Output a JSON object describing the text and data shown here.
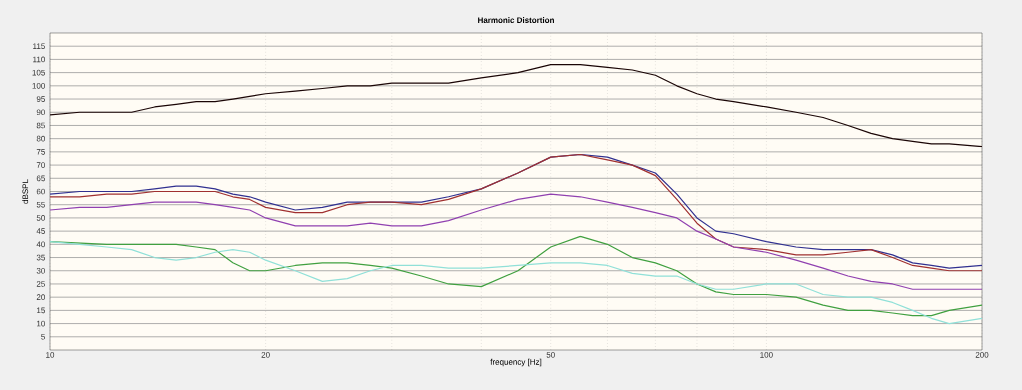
{
  "chart_data": {
    "type": "line",
    "title": "Harmonic Distortion",
    "xlabel": "frequency [Hz]",
    "ylabel": "dBSPL",
    "log": "x",
    "grid": true,
    "line_style": "solid",
    "xlim": [
      10,
      200
    ],
    "ylim": [
      0,
      120
    ],
    "xticks": [
      10,
      20,
      {
        "value": 30,
        "label": null
      },
      {
        "value": 40,
        "label": null
      },
      50,
      {
        "value": 60,
        "label": null
      },
      {
        "value": 70,
        "label": null
      },
      {
        "value": 80,
        "label": null
      },
      {
        "value": 90,
        "label": null
      },
      100,
      200
    ],
    "yticks": [
      5,
      10,
      15,
      20,
      25,
      30,
      35,
      40,
      45,
      50,
      55,
      60,
      65,
      70,
      75,
      80,
      85,
      90,
      95,
      100,
      105,
      110,
      115
    ],
    "x": [
      10,
      11,
      12,
      13,
      14,
      15,
      16,
      17,
      18,
      19,
      20,
      22,
      24,
      26,
      28,
      30,
      33,
      36,
      40,
      45,
      50,
      55,
      60,
      65,
      70,
      75,
      80,
      85,
      90,
      100,
      110,
      120,
      130,
      140,
      150,
      160,
      170,
      180,
      200
    ],
    "series": [
      {
        "color": "#1a0505",
        "values": [
          89,
          90,
          90,
          90,
          92,
          93,
          94,
          94,
          95,
          96,
          97,
          98,
          99,
          100,
          100,
          101,
          101,
          101,
          103,
          105,
          108,
          108,
          107,
          106,
          104,
          100,
          97,
          95,
          94,
          92,
          90,
          88,
          85,
          82,
          80,
          79,
          78,
          78,
          77
        ]
      },
      {
        "color": "#303090",
        "values": [
          59,
          60,
          60,
          60,
          61,
          62,
          62,
          61,
          59,
          58,
          56,
          53,
          54,
          56,
          56,
          56,
          56,
          58,
          61,
          67,
          73,
          74,
          73,
          70,
          67,
          59,
          50,
          45,
          44,
          41,
          39,
          38,
          38,
          38,
          36,
          33,
          32,
          31,
          32
        ]
      },
      {
        "color": "#a03030",
        "values": [
          58,
          58,
          59,
          59,
          60,
          60,
          60,
          60,
          58,
          57,
          54,
          52,
          52,
          55,
          56,
          56,
          55,
          57,
          61,
          67,
          73,
          74,
          72,
          70,
          66,
          57,
          48,
          42,
          39,
          38,
          36,
          36,
          37,
          38,
          35,
          32,
          31,
          30,
          30
        ]
      },
      {
        "color": "#9040b0",
        "values": [
          53,
          54,
          54,
          55,
          56,
          56,
          56,
          55,
          54,
          53,
          50,
          47,
          47,
          47,
          48,
          47,
          47,
          49,
          53,
          57,
          59,
          58,
          56,
          54,
          52,
          50,
          45,
          42,
          39,
          37,
          34,
          31,
          28,
          26,
          25,
          23,
          23,
          23,
          23
        ]
      },
      {
        "color": "#40a040",
        "values": [
          41,
          null,
          40,
          40,
          40,
          40,
          39,
          38,
          33,
          30,
          30,
          32,
          33,
          33,
          32,
          31,
          28,
          25,
          24,
          30,
          39,
          43,
          40,
          35,
          33,
          30,
          25,
          22,
          21,
          21,
          20,
          17,
          15,
          15,
          14,
          13,
          13,
          15,
          17
        ]
      },
      {
        "color": "#90e0d8",
        "values": [
          41,
          40,
          39,
          38,
          35,
          34,
          35,
          37,
          38,
          37,
          34,
          30,
          26,
          27,
          30,
          32,
          32,
          31,
          31,
          32,
          33,
          33,
          32,
          29,
          28,
          28,
          25,
          23,
          23,
          25,
          25,
          21,
          20,
          20,
          18,
          15,
          12,
          10,
          12
        ]
      }
    ]
  }
}
